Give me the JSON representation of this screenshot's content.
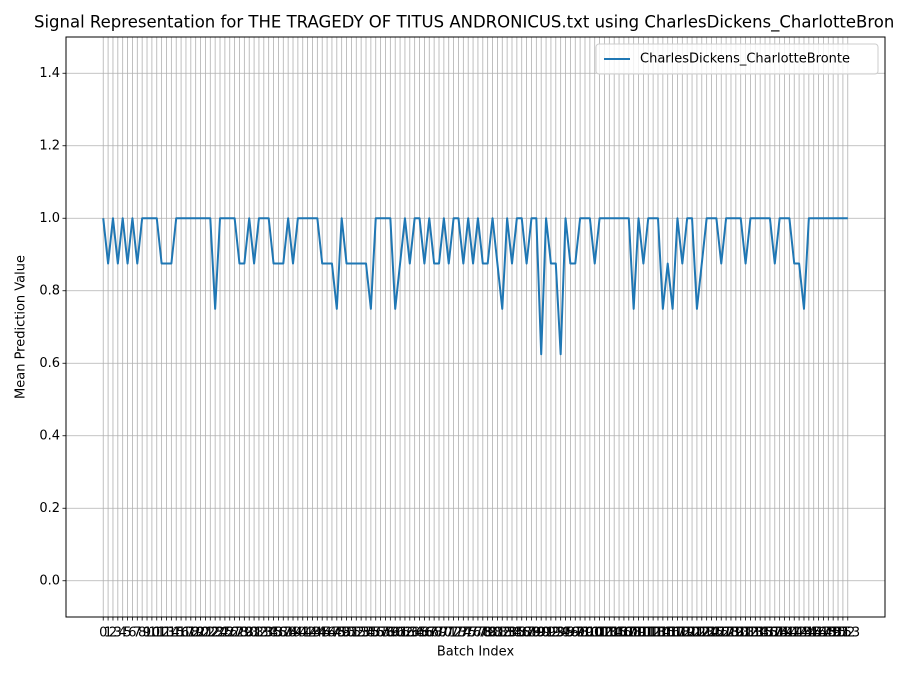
{
  "chart_data": {
    "type": "line",
    "title": "Signal Representation for THE TRAGEDY OF TITUS ANDRONICUS.txt using CharlesDickens_CharlotteBron",
    "x_label": "Batch Index",
    "y_label": "Mean Prediction Value",
    "x": [
      0,
      1,
      2,
      3,
      4,
      5,
      6,
      7,
      8,
      9,
      10,
      11,
      12,
      13,
      14,
      15,
      16,
      17,
      18,
      19,
      20,
      21,
      22,
      23,
      24,
      25,
      26,
      27,
      28,
      29,
      30,
      31,
      32,
      33,
      34,
      35,
      36,
      37,
      38,
      39,
      40,
      41,
      42,
      43,
      44,
      45,
      46,
      47,
      48,
      49,
      50,
      51,
      52,
      53,
      54,
      55,
      56,
      57,
      58,
      59,
      60,
      61,
      62,
      63,
      64,
      65,
      66,
      67,
      68,
      69,
      70,
      71,
      72,
      73,
      74,
      75,
      76,
      77,
      78,
      79,
      80,
      81,
      82,
      83,
      84,
      85,
      86,
      87,
      88,
      89,
      90,
      91,
      92,
      93,
      94,
      95,
      96,
      97,
      98,
      99,
      100,
      101,
      102,
      103,
      104,
      105,
      106,
      107,
      108,
      109,
      110,
      111,
      112,
      113,
      114,
      115,
      116,
      117,
      118,
      119,
      120,
      121,
      122,
      123,
      124,
      125,
      126,
      127,
      128,
      129,
      130,
      131,
      132,
      133,
      134,
      135,
      136,
      137,
      138,
      139,
      140,
      141,
      142,
      143,
      144,
      145,
      146,
      147,
      148,
      149,
      150,
      151,
      152,
      153
    ],
    "series": [
      {
        "name": "CharlesDickens_CharlotteBronte",
        "color": "#1f77b4",
        "values": [
          1,
          0.875,
          1,
          0.875,
          1,
          0.875,
          1,
          0.875,
          1,
          1,
          1,
          1,
          0.875,
          0.875,
          0.875,
          1,
          1,
          1,
          1,
          1,
          1,
          1,
          1,
          0.75,
          1,
          1,
          1,
          1,
          0.875,
          0.875,
          1,
          0.875,
          1,
          1,
          1,
          0.875,
          0.875,
          0.875,
          1,
          0.875,
          1,
          1,
          1,
          1,
          1,
          0.875,
          0.875,
          0.875,
          0.75,
          1,
          0.875,
          0.875,
          0.875,
          0.875,
          0.875,
          0.75,
          1,
          1,
          1,
          1,
          0.75,
          0.875,
          1,
          0.875,
          1,
          1,
          0.875,
          1,
          0.875,
          0.875,
          1,
          0.875,
          1,
          1,
          0.875,
          1,
          0.875,
          1,
          0.875,
          0.875,
          1,
          0.875,
          0.75,
          1,
          0.875,
          1,
          1,
          0.875,
          1,
          1,
          0.625,
          1,
          0.875,
          0.875,
          0.625,
          1,
          0.875,
          0.875,
          1,
          1,
          1,
          0.875,
          1,
          1,
          1,
          1,
          1,
          1,
          1,
          0.75,
          1,
          0.875,
          1,
          1,
          1,
          0.75,
          0.875,
          0.75,
          1,
          0.875,
          1,
          1,
          0.75,
          0.875,
          1,
          1,
          1,
          0.875,
          1,
          1,
          1,
          1,
          0.875,
          1,
          1,
          1,
          1,
          1,
          0.875,
          1,
          1,
          1,
          0.875,
          0.875,
          0.75,
          1,
          1,
          1,
          1,
          1,
          1,
          1,
          1,
          1
        ]
      }
    ],
    "xlim": [
      -7.65,
      160.65
    ],
    "xticks": [
      0,
      1,
      2,
      3,
      4,
      5,
      6,
      7,
      8,
      9,
      10,
      11,
      12,
      13,
      14,
      15,
      16,
      17,
      18,
      19,
      20,
      21,
      22,
      23,
      24,
      25,
      26,
      27,
      28,
      29,
      30,
      31,
      32,
      33,
      34,
      35,
      36,
      37,
      38,
      39,
      40,
      41,
      42,
      43,
      44,
      45,
      46,
      47,
      48,
      49,
      50,
      51,
      52,
      53,
      54,
      55,
      56,
      57,
      58,
      59,
      60,
      61,
      62,
      63,
      64,
      65,
      66,
      67,
      68,
      69,
      70,
      71,
      72,
      73,
      74,
      75,
      76,
      77,
      78,
      79,
      80,
      81,
      82,
      83,
      84,
      85,
      86,
      87,
      88,
      89,
      90,
      91,
      92,
      93,
      94,
      95,
      96,
      97,
      98,
      99,
      100,
      101,
      102,
      103,
      104,
      105,
      106,
      107,
      108,
      109,
      110,
      111,
      112,
      113,
      114,
      115,
      116,
      117,
      118,
      119,
      120,
      121,
      122,
      123,
      124,
      125,
      126,
      127,
      128,
      129,
      130,
      131,
      132,
      133,
      134,
      135,
      136,
      137,
      138,
      139,
      140,
      141,
      142,
      143,
      144,
      145,
      146,
      147,
      148,
      149,
      150,
      151,
      152,
      153
    ],
    "ylim": [
      -0.1,
      1.5
    ],
    "yticks": [
      {
        "value": 0,
        "label": "0.0"
      },
      0.2,
      0.4,
      0.6,
      0.8,
      {
        "value": 1,
        "label": "1.0"
      },
      1.2,
      1.4
    ],
    "grid": true,
    "legend": "upper right"
  }
}
